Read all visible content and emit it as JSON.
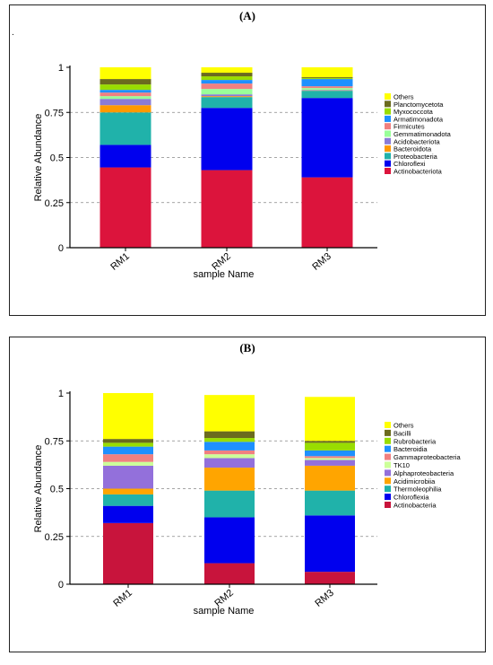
{
  "figure_mark": ".",
  "chart_data": [
    {
      "type": "bar",
      "stacked": true,
      "title": "(A)",
      "xlabel": "sample Name",
      "ylabel": "Relative Abundance",
      "ylim": [
        0,
        1
      ],
      "yticks": [
        "0",
        "0.25",
        "0.5",
        "0.75",
        "1"
      ],
      "categories": [
        "RM1",
        "RM2",
        "RM3"
      ],
      "grid": "dashed-horizontal",
      "legend_position": "right",
      "series": [
        {
          "name": "Actinobacteriota",
          "color": "#dc143c",
          "values": [
            0.445,
            0.43,
            0.39
          ]
        },
        {
          "name": "Chloroflexi",
          "color": "#0000ee",
          "values": [
            0.125,
            0.345,
            0.44
          ]
        },
        {
          "name": "Proteobacteria",
          "color": "#20b2aa",
          "values": [
            0.18,
            0.06,
            0.04
          ]
        },
        {
          "name": "Bacteroidota",
          "color": "#ff9900",
          "values": [
            0.04,
            0.005,
            0.002
          ]
        },
        {
          "name": "Acidobacteriota",
          "color": "#8a7bd6",
          "values": [
            0.035,
            0.01,
            0.003
          ]
        },
        {
          "name": "Gemmatimonadota",
          "color": "#99ff99",
          "values": [
            0.015,
            0.03,
            0.01
          ]
        },
        {
          "name": "Firmicutes",
          "color": "#f08080",
          "values": [
            0.02,
            0.03,
            0.01
          ]
        },
        {
          "name": "Armatimonadota",
          "color": "#1e90ff",
          "values": [
            0.015,
            0.02,
            0.04
          ]
        },
        {
          "name": "Myxococcota",
          "color": "#99dd00",
          "values": [
            0.03,
            0.02,
            0.005
          ]
        },
        {
          "name": "Planctomycetota",
          "color": "#6b6b1e",
          "values": [
            0.03,
            0.02,
            0.005
          ]
        },
        {
          "name": "Others",
          "color": "#ffff00",
          "values": [
            0.065,
            0.03,
            0.055
          ]
        }
      ]
    },
    {
      "type": "bar",
      "stacked": true,
      "title": "(B)",
      "xlabel": "sample Name",
      "ylabel": "Relative Abundance",
      "ylim": [
        0,
        1
      ],
      "yticks": [
        "0",
        "0.25",
        "0.5",
        "0.75",
        "1"
      ],
      "categories": [
        "RM1",
        "RM2",
        "RM3"
      ],
      "grid": "dashed-horizontal",
      "legend_position": "right",
      "series": [
        {
          "name": "Actinobacteria",
          "color": "#c8143c",
          "values": [
            0.32,
            0.11,
            0.065
          ]
        },
        {
          "name": "Chloroflexia",
          "color": "#0000ee",
          "values": [
            0.09,
            0.24,
            0.295
          ]
        },
        {
          "name": "Thermoleophilia",
          "color": "#20b2aa",
          "values": [
            0.06,
            0.14,
            0.13
          ]
        },
        {
          "name": "Acidimicrobiia",
          "color": "#ffa500",
          "values": [
            0.03,
            0.12,
            0.13
          ]
        },
        {
          "name": "Alphaproteobacteria",
          "color": "#9370db",
          "values": [
            0.12,
            0.05,
            0.03
          ]
        },
        {
          "name": "TK10",
          "color": "#ccff99",
          "values": [
            0.02,
            0.02,
            0.01
          ]
        },
        {
          "name": "Gammaproteobacteria",
          "color": "#f08080",
          "values": [
            0.04,
            0.02,
            0.01
          ]
        },
        {
          "name": "Bacteroidia",
          "color": "#1e90ff",
          "values": [
            0.04,
            0.045,
            0.03
          ]
        },
        {
          "name": "Rubrobacteria",
          "color": "#99dd00",
          "values": [
            0.02,
            0.02,
            0.04
          ]
        },
        {
          "name": "Bacilli",
          "color": "#6b6b1e",
          "values": [
            0.02,
            0.035,
            0.01
          ]
        },
        {
          "name": "Others",
          "color": "#ffff00",
          "values": [
            0.24,
            0.19,
            0.23
          ]
        }
      ]
    }
  ]
}
